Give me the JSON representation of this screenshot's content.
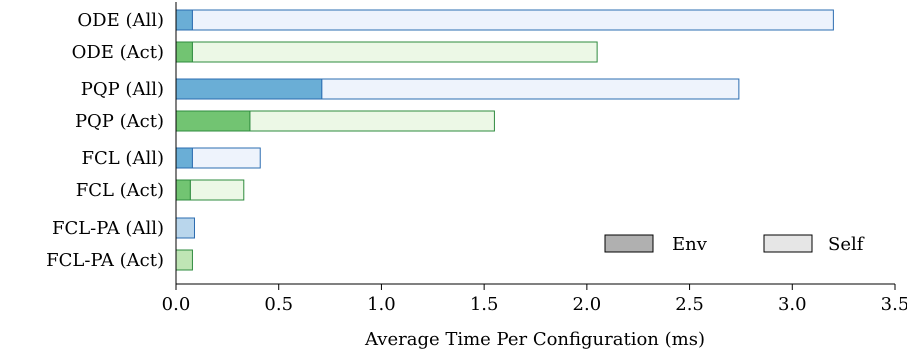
{
  "chart_data": {
    "type": "bar",
    "orientation": "horizontal",
    "stacked": true,
    "categories": [
      "ODE (All)",
      "ODE (Act)",
      "PQP (All)",
      "PQP (Act)",
      "FCL (All)",
      "FCL (Act)",
      "FCL-PA (All)",
      "FCL-PA (Act)"
    ],
    "series": [
      {
        "name": "Env",
        "values": [
          0.08,
          0.08,
          0.71,
          0.36,
          0.08,
          0.07,
          0.09,
          0.08
        ]
      },
      {
        "name": "Self",
        "values": [
          3.12,
          1.97,
          2.03,
          1.19,
          0.33,
          0.26,
          0.0,
          0.0
        ]
      }
    ],
    "xlabel": "Average Time Per Configuration (ms)",
    "xlim": [
      0,
      3.5
    ],
    "xticks": [
      0,
      0.5,
      1,
      1.5,
      2,
      2.5,
      3,
      3.5
    ],
    "xtick_labels": [
      "0.0",
      "0.5",
      "1.0",
      "1.5",
      "2.0",
      "2.5",
      "3.0",
      "3.5"
    ],
    "legend": {
      "placement": "bottom-right",
      "entries": [
        "Env",
        "Self"
      ]
    },
    "grid": false,
    "colors": {
      "all_env": "#6aaed6",
      "all_self": "#eef3fc",
      "all_edge": "#2b6cb0",
      "act_env": "#72c472",
      "act_self": "#ecf8e6",
      "act_edge": "#2e8b3e",
      "pa_all_env": "#b9d6ec",
      "pa_act_env": "#bfe5b5",
      "legend_env": "#b0b0b0",
      "legend_self": "#e6e6e6"
    }
  }
}
